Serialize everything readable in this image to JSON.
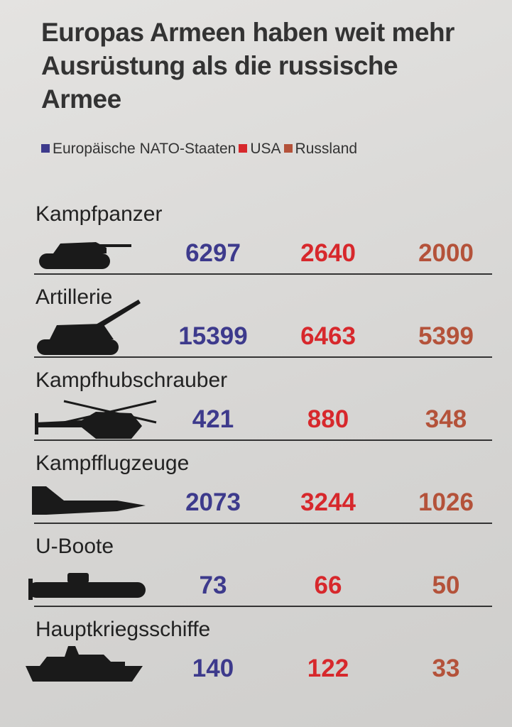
{
  "title": "Europas Armeen haben weit mehr Ausrüstung als die russische Armee",
  "legend": [
    {
      "name": "Europäische NATO-Staaten",
      "color": "#3d3a8c"
    },
    {
      "name": "USA",
      "color": "#d7282c"
    },
    {
      "name": "Russland",
      "color": "#b4523a"
    }
  ],
  "table": {
    "rows": [
      {
        "label": "Kampfpanzer",
        "values": [
          6297,
          2640,
          2000
        ]
      },
      {
        "label": "Artillerie",
        "values": [
          15399,
          6463,
          5399
        ]
      },
      {
        "label": "Kampfhubschrauber",
        "values": [
          421,
          880,
          348
        ]
      },
      {
        "label": "Kampfflugzeuge",
        "values": [
          2073,
          3244,
          1026
        ]
      },
      {
        "label": "U-Boote",
        "values": [
          73,
          66,
          50
        ]
      },
      {
        "label": "Hauptkriegsschiffe",
        "values": [
          140,
          122,
          33
        ]
      }
    ]
  }
}
